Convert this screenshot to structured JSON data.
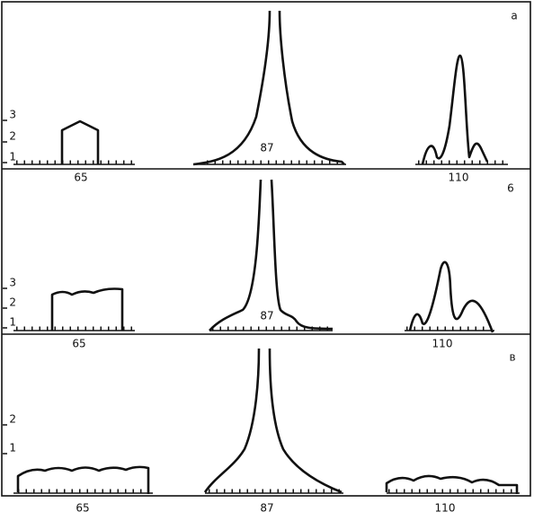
{
  "panels": [
    {
      "label": "a",
      "yticks": [
        3,
        2,
        1
      ],
      "inner_label": 87,
      "xlabels": [
        65,
        110
      ]
    },
    {
      "label": "6",
      "yticks": [
        3,
        2,
        1
      ],
      "inner_label": 87,
      "xlabels": [
        65,
        110
      ]
    },
    {
      "label": "в",
      "yticks": [
        2,
        1
      ],
      "xlabels": [
        65,
        87,
        110
      ]
    }
  ]
}
